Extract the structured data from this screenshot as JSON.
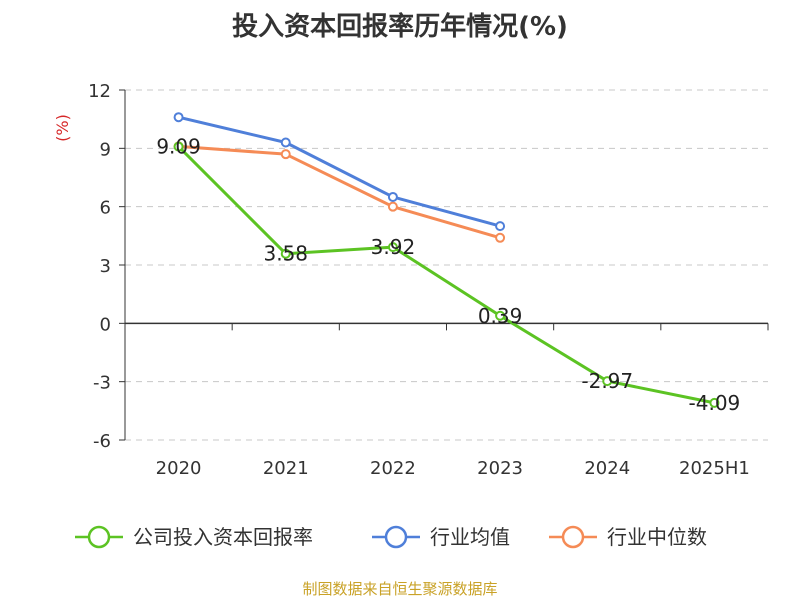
{
  "title": "投入资本回报率历年情况(%)",
  "source": "制图数据来自恒生聚源数据库",
  "chart_data": {
    "type": "line",
    "categories": [
      "2020",
      "2021",
      "2022",
      "2023",
      "2024",
      "2025H1"
    ],
    "ylabel": "(%)",
    "ylim": [
      -6,
      12
    ],
    "yticks": [
      12,
      9,
      6,
      3,
      0,
      -3,
      -6
    ],
    "ytick_labels": [
      "12",
      "9",
      "6",
      "3",
      "0",
      "-3",
      "-6"
    ],
    "grid": true,
    "legend_position": "bottom",
    "series": [
      {
        "name": "公司投入资本回报率",
        "color": "#5cc323",
        "values": [
          9.09,
          3.58,
          3.92,
          0.39,
          -2.97,
          -4.09
        ],
        "labels": [
          "9.09",
          "3.58",
          "3.92",
          "0.39",
          "-2.97",
          "-4.09"
        ]
      },
      {
        "name": "行业均值",
        "color": "#4f7fd9",
        "values": [
          10.6,
          9.3,
          6.5,
          5.0,
          null,
          null
        ]
      },
      {
        "name": "行业中位数",
        "color": "#f58b56",
        "values": [
          9.1,
          8.7,
          6.0,
          4.4,
          null,
          null
        ]
      }
    ]
  }
}
